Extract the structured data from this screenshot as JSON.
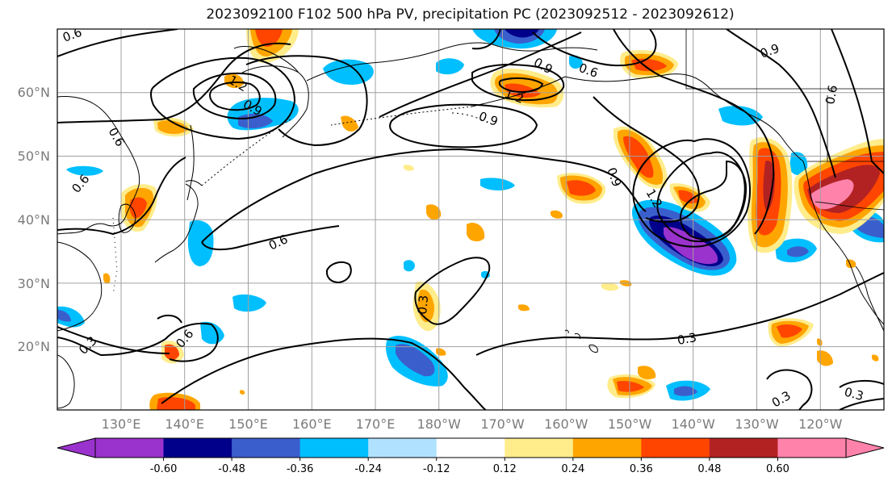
{
  "title": "2023092100 F102 500 hPa PV, precipitation PC (2023092512 - 2023092612)",
  "map": {
    "lat_labels": [
      "60°N",
      "50°N",
      "40°N",
      "30°N",
      "20°N"
    ],
    "lon_labels": [
      "130°E",
      "140°E",
      "150°E",
      "160°E",
      "170°E",
      "180°W",
      "170°W",
      "160°W",
      "150°W",
      "140°W",
      "130°W",
      "120°W"
    ],
    "contour_labels": [
      "0.6",
      "1.2",
      "0.9",
      "0.6",
      "0.6",
      "0.9",
      "1.2",
      "0.6",
      "0.9",
      "0.9",
      "1.2",
      "0.6",
      "0.6",
      "0.3",
      "0.6",
      "0.3",
      "0.3",
      "0.3",
      "0.3",
      "0.9"
    ]
  },
  "colorbar": {
    "colors": [
      "#9a32cd",
      "#00008b",
      "#3a5fcd",
      "#00bfff",
      "#b0e2ff",
      "#ffffff",
      "#ffffff",
      "#ffec8b",
      "#ffa500",
      "#ff4500",
      "#b22222",
      "#ff82ab"
    ],
    "tick_labels": [
      "-0.60",
      "-0.48",
      "-0.36",
      "-0.24",
      "-0.12",
      "0.12",
      "0.24",
      "0.36",
      "0.48",
      "0.60"
    ]
  }
}
